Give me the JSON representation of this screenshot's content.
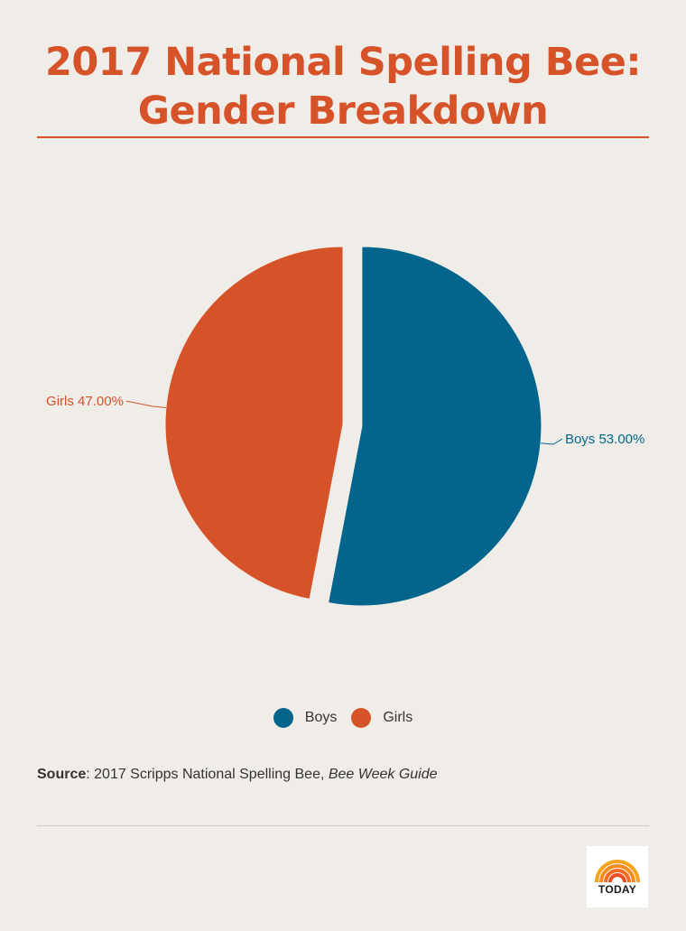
{
  "title_line1": "2017 National Spelling Bee:",
  "title_line2": "Gender Breakdown",
  "colors": {
    "accent": "#d6532a",
    "boys": "#03658c",
    "girls": "#d6532a",
    "background": "#f0ede8"
  },
  "chart_data": {
    "type": "pie",
    "title": "2017 National Spelling Bee: Gender Breakdown",
    "slices": [
      {
        "name": "Boys",
        "value": 53.0,
        "label": "Boys 53.00%",
        "color": "#03658c",
        "exploded": true
      },
      {
        "name": "Girls",
        "value": 47.0,
        "label": "Girls 47.00%",
        "color": "#d6532a",
        "exploded": false
      }
    ],
    "legend": {
      "placement": "bottom-center",
      "items": [
        "Boys",
        "Girls"
      ]
    }
  },
  "source": {
    "label": "Source",
    "text": ": 2017 Scripps National Spelling Bee, ",
    "italic": "Bee Week Guide"
  },
  "logo": {
    "text": "TODAY",
    "icon": "today-rainbow-icon"
  }
}
